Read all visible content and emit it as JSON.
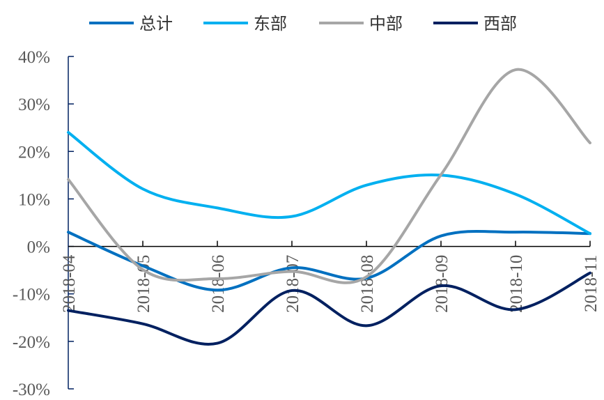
{
  "chart_data": {
    "type": "line",
    "title": "",
    "xlabel": "",
    "ylabel": "",
    "categories": [
      "2018-04",
      "2018-05",
      "2018-06",
      "2018-07",
      "2018-08",
      "2018-09",
      "2018-10",
      "2018-11"
    ],
    "ylim": [
      -30,
      40
    ],
    "yticks": [
      40,
      30,
      20,
      10,
      0,
      -10,
      -20,
      -30
    ],
    "ytick_labels": [
      "40%",
      "30%",
      "20%",
      "10%",
      "0%",
      "-10%",
      "-20%",
      "-30%"
    ],
    "grid": false,
    "smooth": true,
    "legend_position": "top",
    "series": [
      {
        "name": "总计",
        "color": "#0070C0",
        "values": [
          3.0,
          -4.1,
          -9.2,
          -4.5,
          -6.7,
          2.2,
          3.0,
          2.7
        ]
      },
      {
        "name": "东部",
        "color": "#00B0F0",
        "values": [
          24.0,
          12.1,
          8.1,
          6.3,
          12.9,
          15.0,
          11.0,
          2.7
        ]
      },
      {
        "name": "中部",
        "color": "#A6A6A6",
        "values": [
          14.1,
          -4.9,
          -6.8,
          -5.3,
          -6.4,
          15.1,
          37.2,
          21.8
        ]
      },
      {
        "name": "西部",
        "color": "#002060",
        "values": [
          -13.5,
          -16.3,
          -20.4,
          -9.3,
          -16.7,
          -8.3,
          -13.3,
          -5.6
        ]
      }
    ]
  }
}
